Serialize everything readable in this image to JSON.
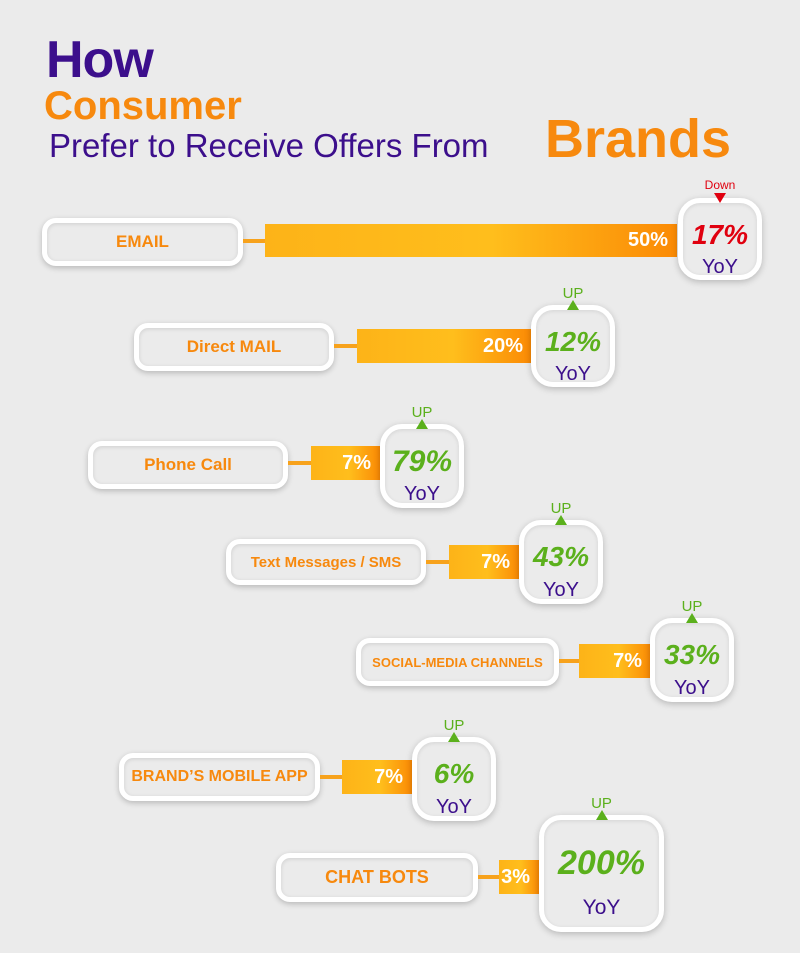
{
  "title": {
    "line1": "How",
    "line2": "Consumer",
    "line3": "Prefer to Receive Offers From",
    "line4": "Brands"
  },
  "colors": {
    "purple": "#3c0f8c",
    "orange": "#f7890e",
    "up_green": "#5bb01c",
    "down_red": "#e0000f"
  },
  "chart_data": {
    "type": "bar",
    "title": "How Consumer Prefer to Receive Offers From Brands",
    "categories": [
      "EMAIL",
      "Direct MAIL",
      "Phone Call",
      "Text Messages / SMS",
      "SOCIAL-MEDIA CHANNELS",
      "BRAND’S MOBILE APP",
      "CHAT BOTS"
    ],
    "values": [
      50,
      20,
      7,
      7,
      7,
      7,
      3
    ],
    "value_labels": [
      "50%",
      "20%",
      "7%",
      "7%",
      "7%",
      "7%",
      "3%"
    ],
    "yoy_change": [
      "17%",
      "12%",
      "79%",
      "43%",
      "33%",
      "6%",
      "200%"
    ],
    "yoy_direction": [
      "Down",
      "UP",
      "UP",
      "UP",
      "UP",
      "UP",
      "UP"
    ],
    "yoy_label": "YoY"
  }
}
